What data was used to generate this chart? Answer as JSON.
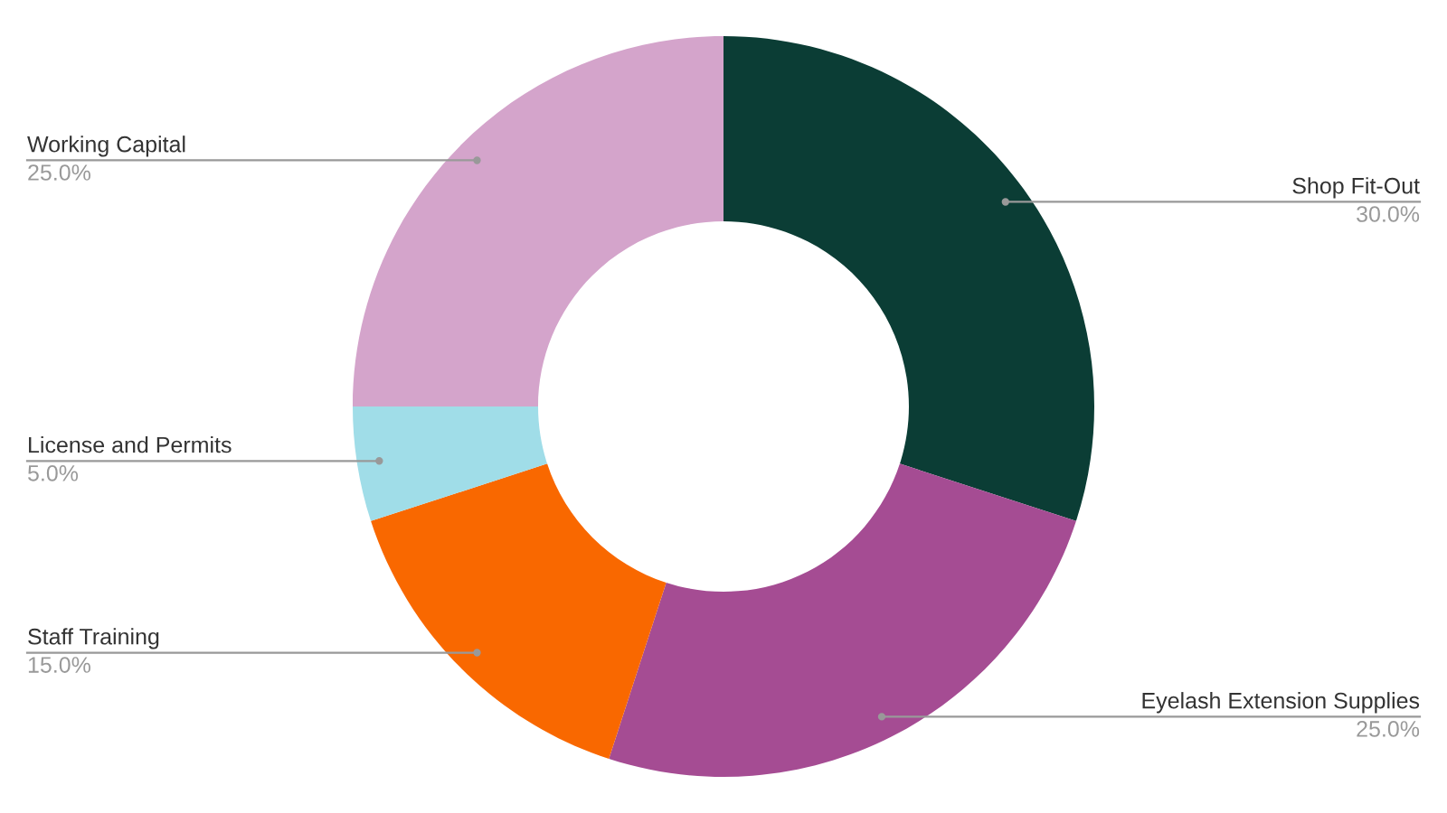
{
  "chart_data": {
    "type": "donut",
    "categories": [
      "Shop Fit-Out",
      "Eyelash Extension Supplies",
      "Staff Training",
      "License and Permits",
      "Working Capital"
    ],
    "values": [
      30,
      25,
      15,
      5,
      25
    ],
    "value_labels": [
      "30.0%",
      "25.0%",
      "15.0%",
      "5.0%",
      "25.0%"
    ],
    "colors": [
      "#0b3d35",
      "#a54c93",
      "#f96800",
      "#a0dde8",
      "#d4a4cb"
    ],
    "legend": false
  }
}
